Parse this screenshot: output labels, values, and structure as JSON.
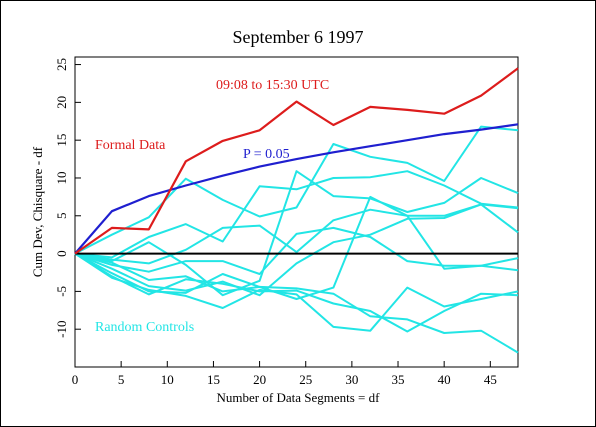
{
  "colors": {
    "formal": "#dd1c1c",
    "expectation": "#1f1fcf",
    "controls": "#22e5e5",
    "zero": "#000000",
    "axis": "#000000",
    "background": "#ffffff"
  },
  "chart_data": {
    "type": "line",
    "title": "September 6 1997",
    "xlabel": "Number of Data Segments = df",
    "ylabel": "Cum Dev, Chisquare - df",
    "xlim": [
      0,
      48
    ],
    "ylim": [
      -15,
      26
    ],
    "xticks": [
      0,
      5,
      10,
      15,
      20,
      25,
      30,
      35,
      40,
      45
    ],
    "yticks": [
      -10,
      -5,
      0,
      5,
      10,
      15,
      20,
      25
    ],
    "grid": false,
    "annotations": {
      "time_range": "09:08 to 15:30 UTC",
      "formal_label": "Formal Data",
      "p_label": "P = 0.05",
      "controls_label": "Random Controls"
    },
    "formal": {
      "x": [
        0,
        4,
        8,
        12,
        16,
        20,
        24,
        28,
        32,
        36,
        40,
        44,
        48
      ],
      "y": [
        0,
        3.4,
        3.2,
        12.2,
        14.9,
        16.3,
        20.1,
        17.0,
        19.4,
        19.0,
        18.5,
        20.9,
        24.5
      ]
    },
    "expectation": {
      "x": [
        0,
        4,
        8,
        12,
        16,
        20,
        24,
        28,
        32,
        36,
        40,
        44,
        48
      ],
      "y": [
        0,
        5.6,
        7.6,
        9.0,
        10.3,
        11.5,
        12.5,
        13.4,
        14.2,
        15.0,
        15.8,
        16.4,
        17.1
      ]
    },
    "controls": [
      {
        "x": [
          0,
          4,
          8,
          12,
          16,
          20,
          24,
          28,
          32,
          36,
          40,
          44,
          48
        ],
        "y": [
          0,
          2.5,
          4.8,
          9.9,
          7.1,
          4.9,
          6.1,
          14.5,
          12.8,
          12.0,
          9.6,
          16.8,
          16.3
        ]
      },
      {
        "x": [
          0,
          4,
          8,
          12,
          16,
          20,
          24,
          28,
          32,
          36,
          40,
          44,
          48
        ],
        "y": [
          0,
          -0.5,
          2.2,
          3.9,
          1.6,
          8.9,
          8.5,
          10.0,
          10.1,
          10.9,
          9.0,
          6.6,
          6.1
        ]
      },
      {
        "x": [
          0,
          4,
          8,
          12,
          16,
          20,
          24,
          28,
          32,
          36,
          40,
          44,
          48
        ],
        "y": [
          0,
          -1.0,
          1.5,
          -1.5,
          -5.5,
          -3.6,
          10.9,
          7.6,
          7.3,
          5.5,
          6.7,
          10.0,
          8.0
        ]
      },
      {
        "x": [
          0,
          4,
          8,
          12,
          16,
          20,
          24,
          28,
          32,
          36,
          40,
          44,
          48
        ],
        "y": [
          0,
          -0.8,
          -1.3,
          0.5,
          3.4,
          3.7,
          0.2,
          4.4,
          5.8,
          5.0,
          5.0,
          6.5,
          2.8
        ]
      },
      {
        "x": [
          0,
          4,
          8,
          12,
          16,
          20,
          24,
          28,
          32,
          36,
          40,
          44,
          48
        ],
        "y": [
          0,
          -1.5,
          -2.4,
          -1.0,
          -1.0,
          -2.7,
          2.6,
          3.4,
          2.2,
          -1.0,
          -1.6,
          -1.6,
          -0.6
        ]
      },
      {
        "x": [
          0,
          4,
          8,
          12,
          16,
          20,
          24,
          28,
          32,
          36,
          40,
          44,
          48
        ],
        "y": [
          0,
          -2.0,
          -4.3,
          -4.9,
          -3.7,
          -5.5,
          -1.3,
          1.5,
          2.5,
          4.6,
          4.7,
          6.5,
          6.0
        ]
      },
      {
        "x": [
          0,
          4,
          8,
          12,
          16,
          20,
          24,
          28,
          32,
          36,
          40,
          44,
          48
        ],
        "y": [
          0,
          -1.2,
          -3.5,
          -3.0,
          -5.0,
          -4.4,
          -6.0,
          -4.5,
          7.5,
          5.0,
          -2.0,
          -1.6,
          -2.2
        ]
      },
      {
        "x": [
          0,
          4,
          8,
          12,
          16,
          20,
          24,
          28,
          32,
          36,
          40,
          44,
          48
        ],
        "y": [
          0,
          -2.6,
          -5.0,
          -5.2,
          -2.7,
          -4.4,
          -4.6,
          -5.3,
          -8.3,
          -8.7,
          -10.5,
          -10.2,
          -13.1
        ]
      },
      {
        "x": [
          0,
          4,
          8,
          12,
          16,
          20,
          24,
          28,
          32,
          36,
          40,
          44,
          48
        ],
        "y": [
          0,
          -3.2,
          -4.8,
          -5.6,
          -7.2,
          -4.8,
          -5.4,
          -9.7,
          -10.2,
          -4.5,
          -7.0,
          -6.0,
          -5.0
        ]
      },
      {
        "x": [
          0,
          4,
          8,
          12,
          16,
          20,
          24,
          28,
          32,
          36,
          40,
          44,
          48
        ],
        "y": [
          0,
          -3.0,
          -5.4,
          -3.4,
          -4.0,
          -5.0,
          -4.9,
          -6.6,
          -7.6,
          -10.3,
          -7.6,
          -5.3,
          -5.5
        ]
      }
    ]
  }
}
